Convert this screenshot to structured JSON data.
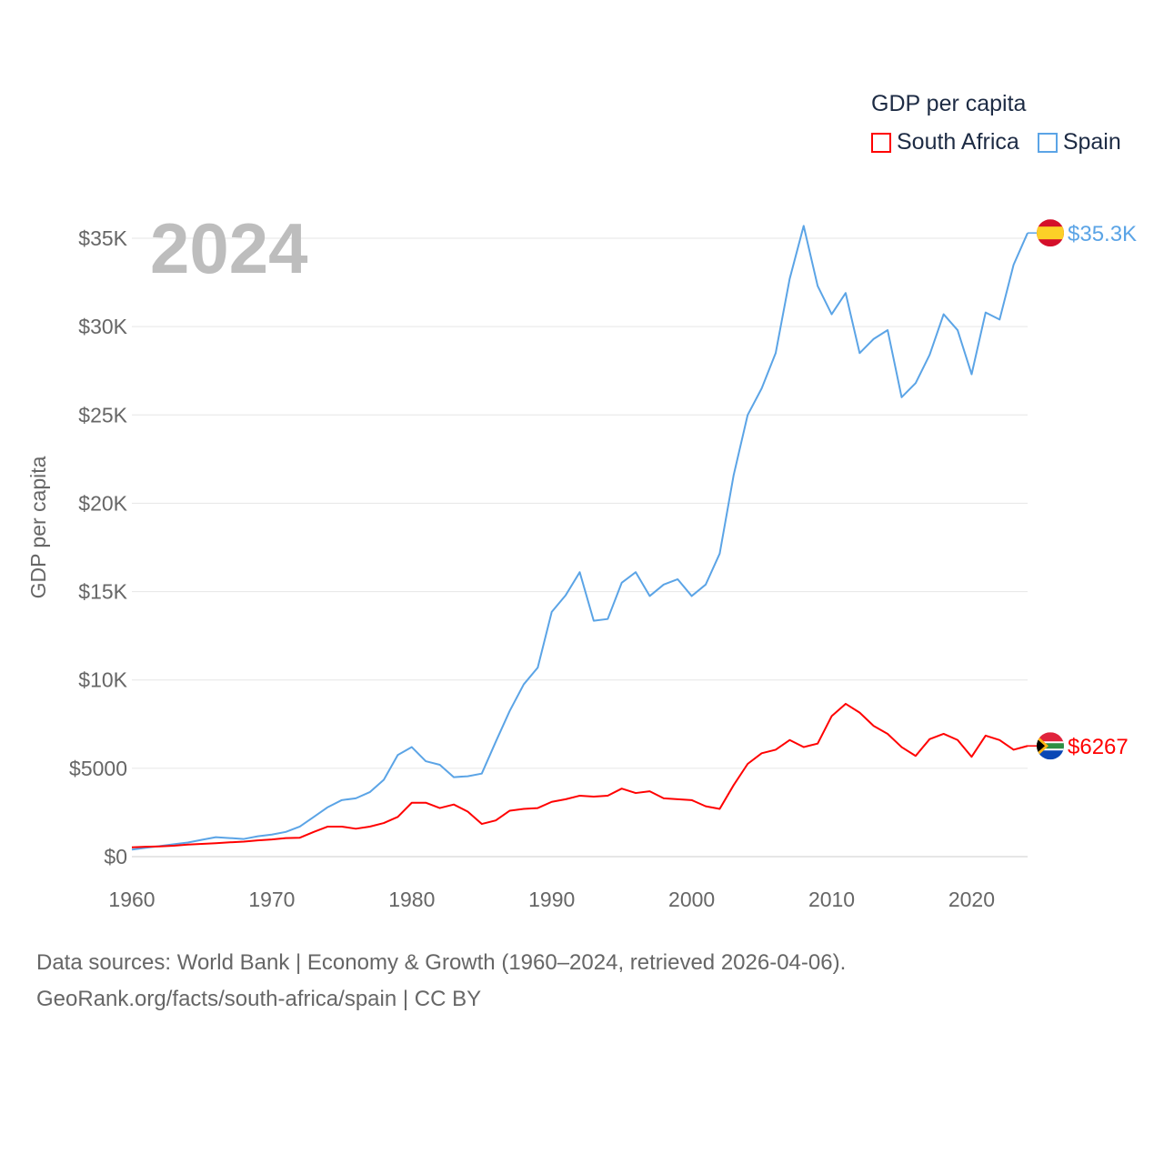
{
  "chart_data": {
    "type": "line",
    "title": "GDP per capita",
    "ylabel": "GDP per capita",
    "xlabel": "",
    "xlim": [
      1960,
      2024
    ],
    "ylim": [
      0,
      35000
    ],
    "grid": true,
    "legend_placement": "top-right",
    "x_ticks": [
      "1960",
      "1970",
      "1980",
      "1990",
      "2000",
      "2010",
      "2020"
    ],
    "y_ticks": [
      "$0",
      "$5000",
      "$10K",
      "$15K",
      "$20K",
      "$25K",
      "$30K",
      "$35K"
    ],
    "year_label": "2024",
    "x": [
      1960,
      1961,
      1962,
      1963,
      1964,
      1965,
      1966,
      1967,
      1968,
      1969,
      1970,
      1971,
      1972,
      1973,
      1974,
      1975,
      1976,
      1977,
      1978,
      1979,
      1980,
      1981,
      1982,
      1983,
      1984,
      1985,
      1986,
      1987,
      1988,
      1989,
      1990,
      1991,
      1992,
      1993,
      1994,
      1995,
      1996,
      1997,
      1998,
      1999,
      2000,
      2001,
      2002,
      2003,
      2004,
      2005,
      2006,
      2007,
      2008,
      2009,
      2010,
      2011,
      2012,
      2013,
      2014,
      2015,
      2016,
      2017,
      2018,
      2019,
      2020,
      2021,
      2022,
      2023,
      2024
    ],
    "series": [
      {
        "name": "South Africa",
        "color": "#ff0000",
        "end_label": "$6267",
        "flag": "south-africa-flag-icon",
        "values": [
          530,
          560,
          580,
          620,
          680,
          720,
          760,
          810,
          850,
          920,
          970,
          1050,
          1070,
          1400,
          1700,
          1700,
          1580,
          1700,
          1900,
          2250,
          3050,
          3050,
          2750,
          2950,
          2550,
          1850,
          2050,
          2600,
          2700,
          2750,
          3100,
          3250,
          3450,
          3400,
          3450,
          3850,
          3600,
          3700,
          3300,
          3250,
          3200,
          2850,
          2700,
          4050,
          5250,
          5850,
          6050,
          6600,
          6200,
          6400,
          7950,
          8650,
          8150,
          7400,
          6950,
          6200,
          5700,
          6650,
          6950,
          6600,
          5650,
          6850,
          6600,
          6050,
          6267
        ]
      },
      {
        "name": "Spain",
        "color": "#5ba4e6",
        "end_label": "$35.3K",
        "flag": "spain-flag-icon",
        "values": [
          400,
          500,
          600,
          700,
          800,
          950,
          1100,
          1050,
          1000,
          1150,
          1250,
          1400,
          1700,
          2250,
          2800,
          3200,
          3300,
          3650,
          4350,
          5750,
          6200,
          5400,
          5200,
          4500,
          4550,
          4700,
          6500,
          8250,
          9750,
          10700,
          13850,
          14800,
          16100,
          13350,
          13450,
          15500,
          16100,
          14750,
          15400,
          15700,
          14750,
          15400,
          17150,
          21600,
          25000,
          26500,
          28500,
          32700,
          35700,
          32300,
          30700,
          31900,
          28500,
          29300,
          29800,
          26000,
          26800,
          28400,
          30700,
          29800,
          27300,
          30800,
          30400,
          33500,
          35300
        ]
      }
    ]
  },
  "footer": {
    "line1": "Data sources: World Bank | Economy & Growth (1960–2024, retrieved 2026-04-06).",
    "line2": "GeoRank.org/facts/south-africa/spain | CC BY"
  }
}
